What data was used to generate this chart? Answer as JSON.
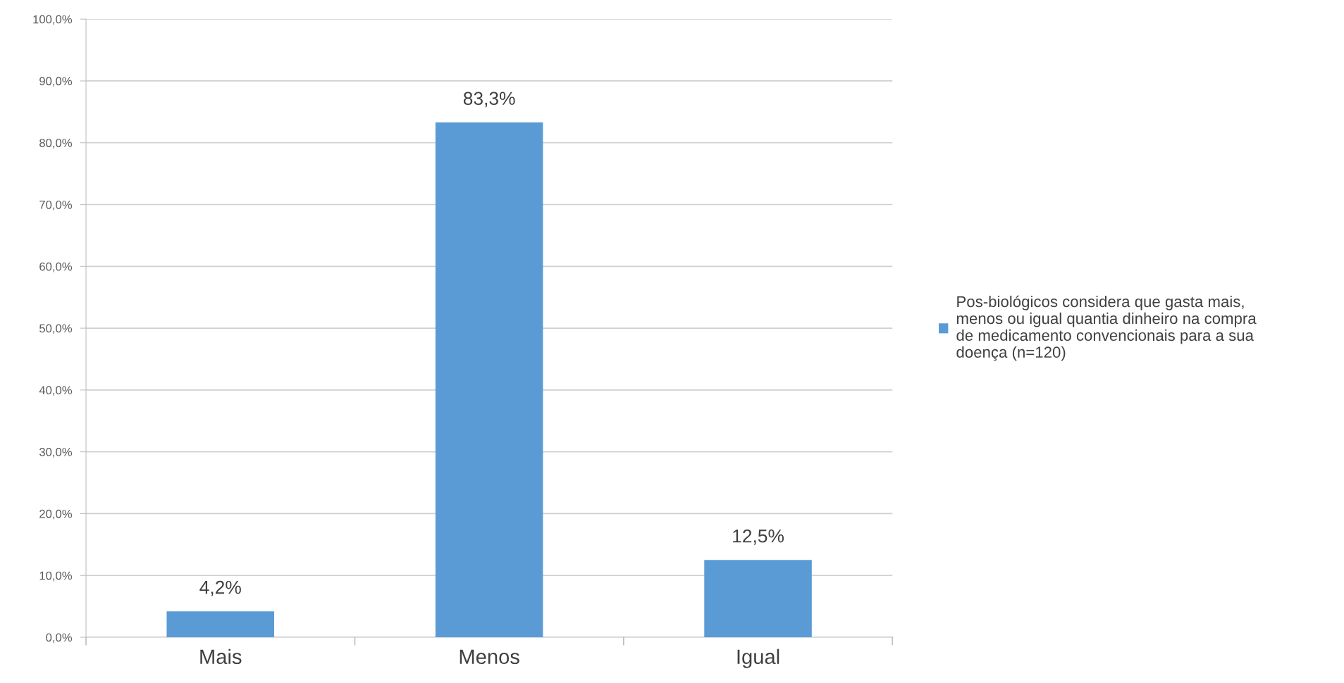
{
  "chart_data": {
    "type": "bar",
    "categories": [
      "Mais",
      "Menos",
      "Igual"
    ],
    "series": [
      {
        "name": "Pos-biológicos considera que gasta mais,\nmenos ou igual quantia dinheiro na compra\nde medicamento convencionais para a sua\ndoença (n=120)",
        "color": "#5b9bd5",
        "values": [
          4.2,
          83.3,
          12.5
        ],
        "value_labels": [
          "4,2%",
          "83,3%",
          "12,5%"
        ]
      }
    ],
    "ylim": [
      0,
      100
    ],
    "yticks": [
      {
        "value": 0,
        "label": "0,0%"
      },
      {
        "value": 10,
        "label": "10,0%"
      },
      {
        "value": 20,
        "label": "20,0%"
      },
      {
        "value": 30,
        "label": "30,0%"
      },
      {
        "value": 40,
        "label": "40,0%"
      },
      {
        "value": 50,
        "label": "50,0%"
      },
      {
        "value": 60,
        "label": "60,0%"
      },
      {
        "value": 70,
        "label": "70,0%"
      },
      {
        "value": 80,
        "label": "80,0%"
      },
      {
        "value": 90,
        "label": "90,0%"
      },
      {
        "value": 100,
        "label": "100,0%"
      }
    ],
    "grid": "y",
    "legend": "right"
  }
}
